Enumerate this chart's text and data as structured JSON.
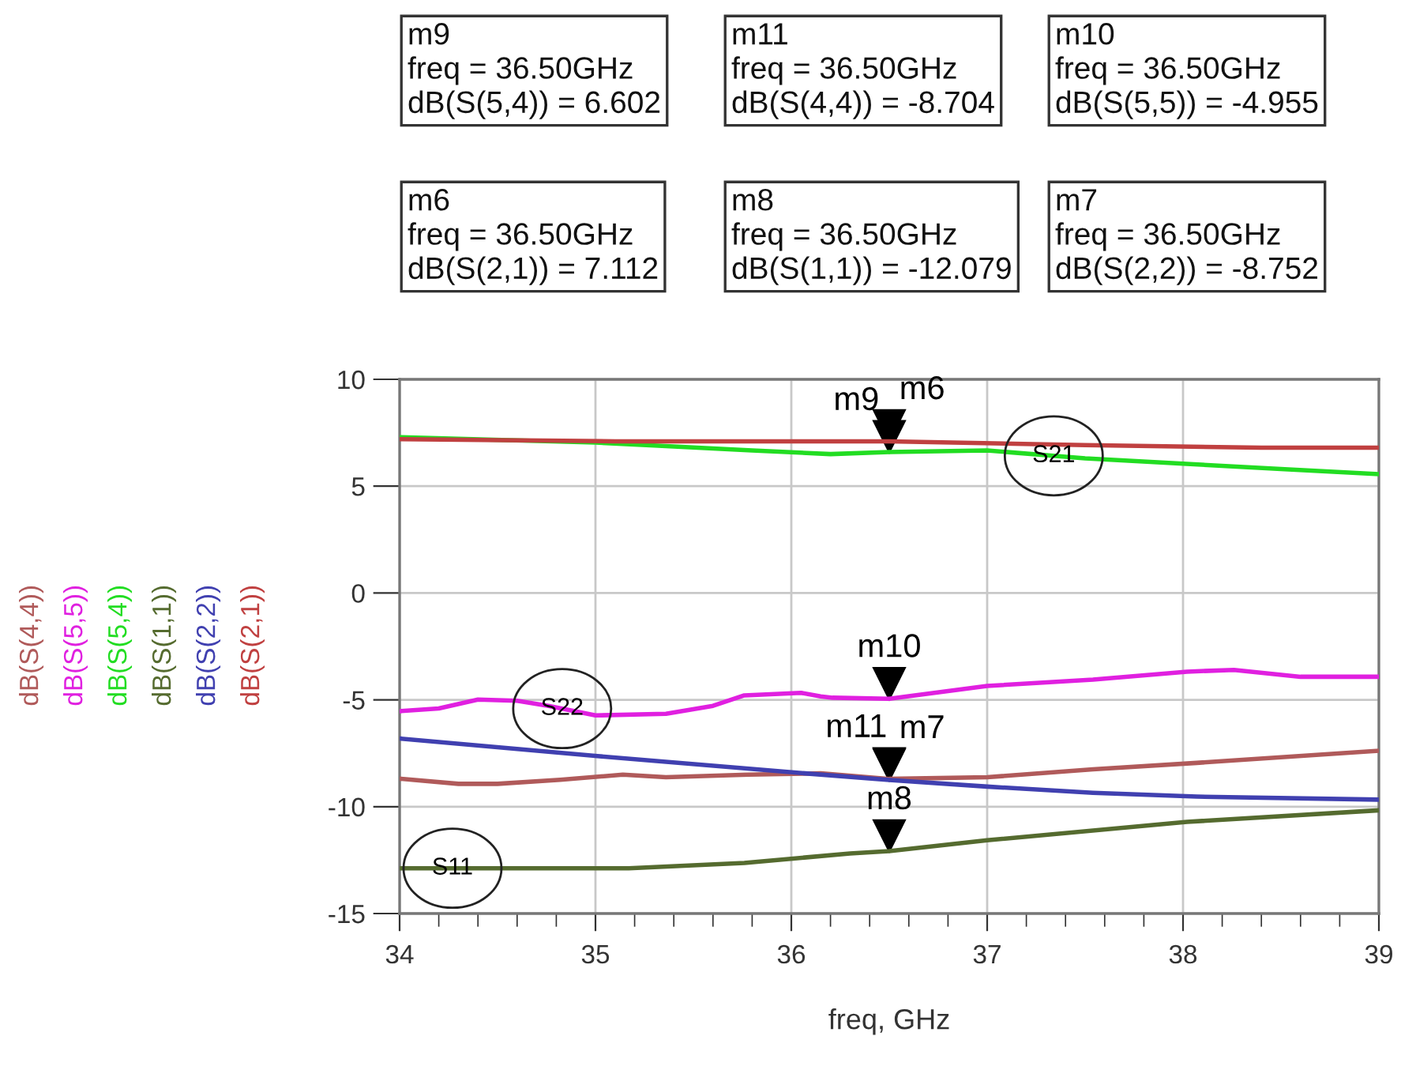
{
  "chart_data": {
    "type": "line",
    "xlabel": "freq, GHz",
    "xlim": [
      34,
      39
    ],
    "xticks": [
      34,
      35,
      36,
      37,
      38,
      39
    ],
    "ylim": [
      -15,
      10
    ],
    "yticks": [
      -15,
      -10,
      -5,
      0,
      5,
      10
    ],
    "grid": true,
    "legend": "left",
    "marker": "none",
    "line_style": "solid",
    "series": [
      {
        "name": "dB(S(4,4))",
        "color": "#b05a5a",
        "x": [
          34,
          34.3,
          34.5,
          34.82,
          35.14,
          35.36,
          35.78,
          36.15,
          36.5,
          37,
          37.54,
          38.07,
          39
        ],
        "values": [
          -8.69,
          -8.93,
          -8.93,
          -8.74,
          -8.5,
          -8.62,
          -8.5,
          -8.44,
          -8.7,
          -8.62,
          -8.25,
          -7.95,
          -7.38
        ]
      },
      {
        "name": "dB(S(5,5))",
        "color": "#e020e0",
        "x": [
          34,
          34.2,
          34.4,
          34.6,
          34.76,
          35.0,
          35.36,
          35.6,
          35.76,
          36.05,
          36.15,
          36.21,
          36.5,
          36.63,
          37.0,
          37.54,
          38.02,
          38.26,
          38.6,
          39
        ],
        "values": [
          -5.53,
          -5.4,
          -4.99,
          -5.04,
          -5.28,
          -5.73,
          -5.65,
          -5.28,
          -4.79,
          -4.67,
          -4.84,
          -4.9,
          -4.95,
          -4.79,
          -4.35,
          -4.05,
          -3.68,
          -3.6,
          -3.92,
          -3.92
        ]
      },
      {
        "name": "dB(S(5,4))",
        "color": "#22dd22",
        "x": [
          34,
          35,
          35.3,
          35.8,
          36.2,
          36.5,
          37,
          37.5,
          38,
          38.5,
          39
        ],
        "values": [
          7.29,
          7.04,
          6.9,
          6.67,
          6.5,
          6.6,
          6.67,
          6.3,
          6.05,
          5.8,
          5.56
        ]
      },
      {
        "name": "dB(S(1,1))",
        "color": "#556b2f",
        "x": [
          34,
          35.17,
          35.76,
          36.3,
          36.5,
          37,
          38.02,
          39
        ],
        "values": [
          -12.88,
          -12.88,
          -12.63,
          -12.19,
          -12.08,
          -11.57,
          -10.71,
          -10.17
        ]
      },
      {
        "name": "dB(S(2,2))",
        "color": "#4040b0",
        "x": [
          34,
          35.01,
          36.07,
          36.5,
          37,
          37.54,
          38.07,
          39
        ],
        "values": [
          -6.81,
          -7.63,
          -8.44,
          -8.75,
          -9.06,
          -9.35,
          -9.53,
          -9.67
        ]
      },
      {
        "name": "dB(S(2,1))",
        "color": "#c04040",
        "x": [
          34,
          35.1,
          36.5,
          37.5,
          38.4,
          39
        ],
        "values": [
          7.2,
          7.1,
          7.1,
          6.92,
          6.8,
          6.8
        ]
      }
    ],
    "annotations": [
      "m9\nfreq = 36.50GHz\ndB(S(5,4)) = 6.602",
      "m11\nfreq = 36.50GHz\ndB(S(4,4)) = -8.704",
      "m10\nfreq = 36.50GHz\ndB(S(5,5)) = -4.955",
      "m6\nfreq = 36.50GHz\ndB(S(2,1)) = 7.112",
      "m8\nfreq = 36.50GHz\ndB(S(1,1)) = -12.079",
      "m7\nfreq = 36.50GHz\ndB(S(2,2)) = -8.752",
      {
        "text": "m9",
        "x": 36.5,
        "y": 6.602
      },
      {
        "text": "m6",
        "x": 36.5,
        "y": 7.112
      },
      {
        "text": "m10",
        "x": 36.5,
        "y": -4.955
      },
      {
        "text": "m11",
        "x": 36.5,
        "y": -8.704
      },
      {
        "text": "m7",
        "x": 36.5,
        "y": -8.752
      },
      {
        "text": "m8",
        "x": 36.5,
        "y": -12.079
      },
      {
        "text": "S21",
        "x": 37.34,
        "y": 6.42
      },
      {
        "text": "S22",
        "x": 34.83,
        "y": -5.41
      },
      {
        "text": "S11",
        "x": 34.27,
        "y": -12.88
      }
    ]
  }
}
